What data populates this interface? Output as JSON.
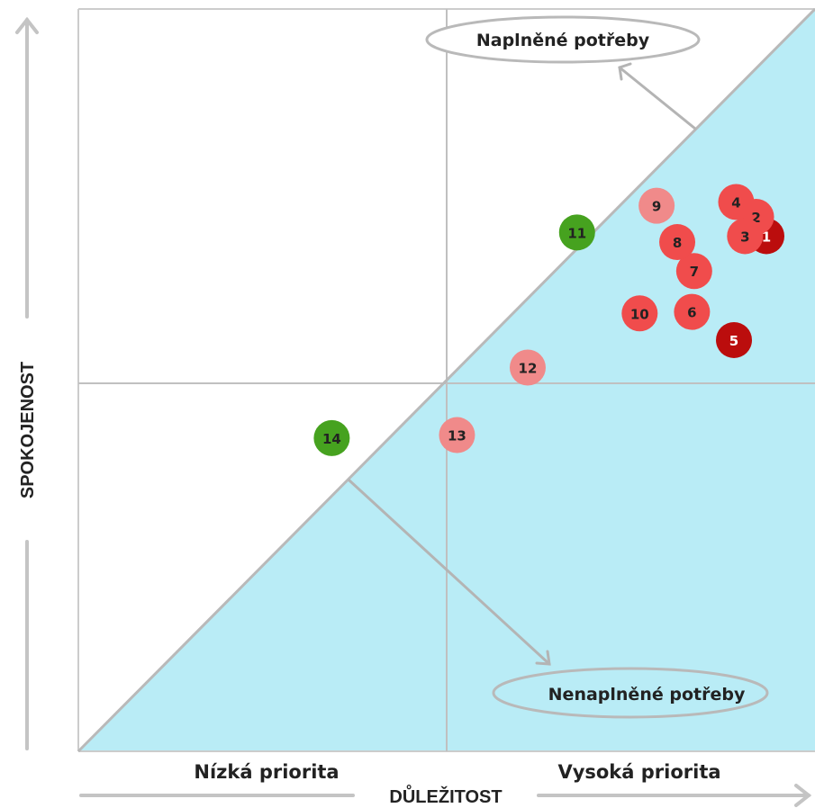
{
  "chart_data": {
    "type": "scatter",
    "title": "",
    "xlabel": "DŮLEŽITOST",
    "ylabel": "SPOKOJENOST",
    "xlim": [
      0,
      10
    ],
    "ylim": [
      0,
      10
    ],
    "grid": false,
    "x_categories": [
      "Nízká priorita",
      "Vysoká priorita"
    ],
    "regions": {
      "upper": "Naplněné potřeby",
      "lower": "Nenaplněné potřeby"
    },
    "colors": {
      "shade": "#b9ecf6",
      "frame": "#cccccc",
      "dark_red": "#bb0d0d",
      "red": "#f04c4c",
      "light_red": "#f08a8a",
      "green": "#46a21f"
    },
    "points": [
      {
        "label": "1",
        "x": 9.34,
        "y": 6.94,
        "color": "dark_red",
        "text_color": "#ffffff"
      },
      {
        "label": "2",
        "x": 9.2,
        "y": 7.2,
        "color": "red",
        "text_color": "#222222"
      },
      {
        "label": "3",
        "x": 9.05,
        "y": 6.94,
        "color": "red",
        "text_color": "#222222"
      },
      {
        "label": "4",
        "x": 8.93,
        "y": 7.4,
        "color": "red",
        "text_color": "#222222"
      },
      {
        "label": "5",
        "x": 8.9,
        "y": 5.54,
        "color": "dark_red",
        "text_color": "#ffffff"
      },
      {
        "label": "6",
        "x": 8.33,
        "y": 5.92,
        "color": "red",
        "text_color": "#222222"
      },
      {
        "label": "7",
        "x": 8.36,
        "y": 6.47,
        "color": "red",
        "text_color": "#222222"
      },
      {
        "label": "8",
        "x": 8.13,
        "y": 6.86,
        "color": "red",
        "text_color": "#222222"
      },
      {
        "label": "9",
        "x": 7.85,
        "y": 7.35,
        "color": "light_red",
        "text_color": "#222222"
      },
      {
        "label": "10",
        "x": 7.62,
        "y": 5.9,
        "color": "red",
        "text_color": "#222222"
      },
      {
        "label": "11",
        "x": 6.77,
        "y": 6.99,
        "color": "green",
        "text_color": "#222222"
      },
      {
        "label": "12",
        "x": 6.1,
        "y": 5.17,
        "color": "light_red",
        "text_color": "#222222"
      },
      {
        "label": "13",
        "x": 5.14,
        "y": 4.26,
        "color": "light_red",
        "text_color": "#222222"
      },
      {
        "label": "14",
        "x": 3.44,
        "y": 4.22,
        "color": "green",
        "text_color": "#222222"
      }
    ]
  }
}
